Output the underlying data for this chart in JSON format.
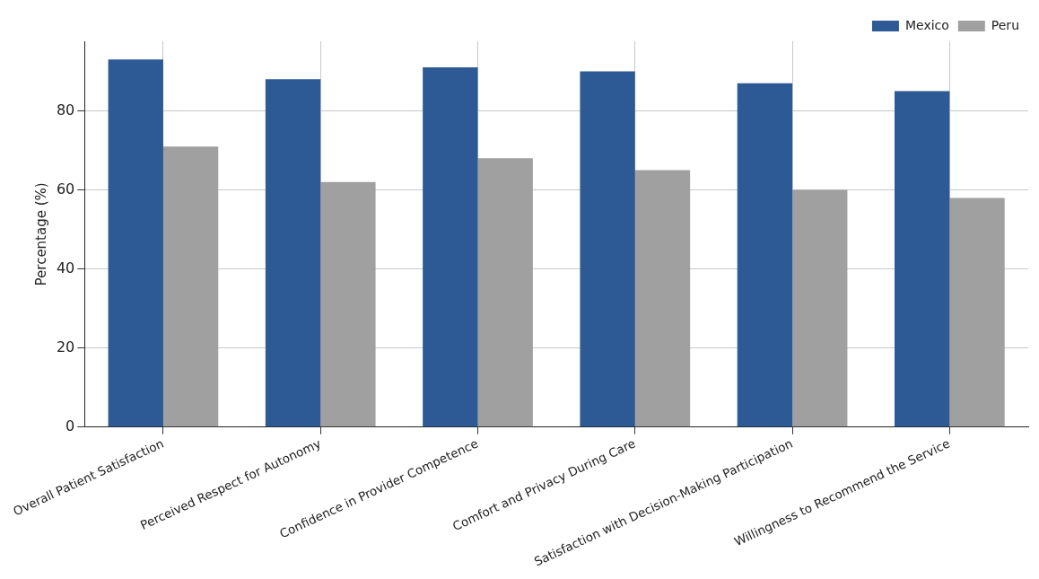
{
  "chart_data": {
    "type": "bar",
    "ylabel": "Percentage (%)",
    "categories": [
      "Overall Patient Satisfaction",
      "Perceived Respect for Autonomy",
      "Confidence in Provider Competence",
      "Comfort and Privacy During Care",
      "Satisfaction with Decision-Making Participation",
      "Willingness to Recommend the Service"
    ],
    "series": [
      {
        "name": "Mexico",
        "color": "#2d5a94",
        "values": [
          93,
          88,
          91,
          90,
          87,
          85
        ]
      },
      {
        "name": "Peru",
        "color": "#a0a0a0",
        "values": [
          71,
          62,
          68,
          65,
          60,
          58
        ]
      }
    ],
    "ylim": [
      0,
      97.6
    ],
    "yticks": [
      0,
      20,
      40,
      60,
      80
    ],
    "grid": true,
    "legend": "top right"
  }
}
